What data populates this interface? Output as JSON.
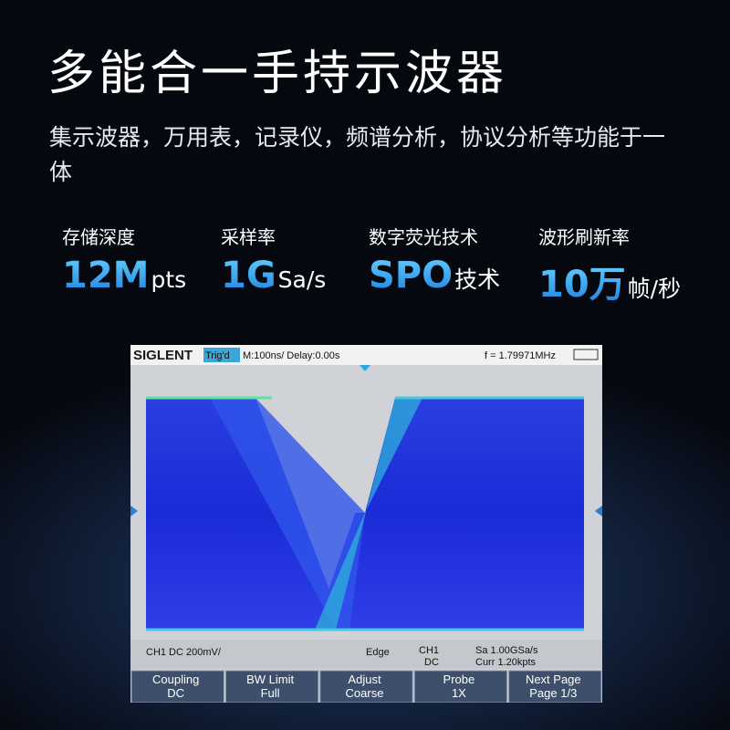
{
  "header": {
    "title": "多能合一手持示波器",
    "subtitle": "集示波器，万用表，记录仪，频谱分析，协议分析等功能于一体"
  },
  "specs": [
    {
      "label": "存储深度",
      "value": "12M",
      "unit": "pts"
    },
    {
      "label": "采样率",
      "value": "1G",
      "unit": "Sa/s"
    },
    {
      "label": "数字荧光技术",
      "value": "SPO",
      "unit": "技术"
    },
    {
      "label": "波形刷新率",
      "value": "10万",
      "unit": "帧/秒"
    }
  ],
  "scope": {
    "brand": "SIGLENT",
    "trigger_status": "Trig'd",
    "timebase": "M:100ns/ Delay:0.00s",
    "frequency": "f = 1.79971MHz",
    "status": {
      "channel": "CH1 DC 200mV/",
      "trigger_type": "Edge",
      "source_channel": "CH1",
      "source_coupling": "DC",
      "sample_rate": "Sa 1.00GSa/s",
      "memory": "Curr 1.20kpts"
    },
    "softkeys": [
      {
        "title": "Coupling",
        "value": "DC"
      },
      {
        "title": "BW Limit",
        "value": "Full"
      },
      {
        "title": "Adjust",
        "value": "Coarse"
      },
      {
        "title": "Probe",
        "value": "1X"
      },
      {
        "title": "Next Page",
        "value": "Page 1/3"
      }
    ]
  }
}
